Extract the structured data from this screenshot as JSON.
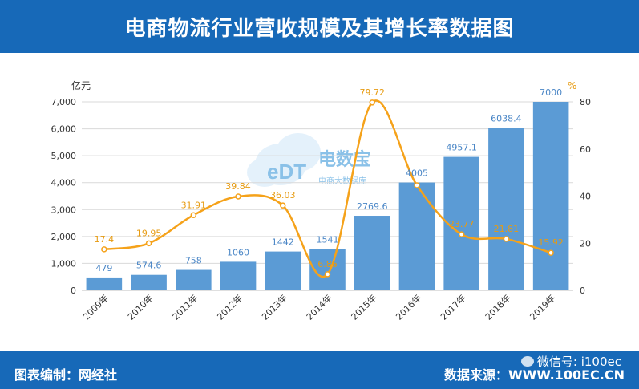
{
  "header": {
    "title": "电商物流行业营收规模及其增长率数据图"
  },
  "footer": {
    "credit": "图表编制：网经社",
    "source": "数据来源：WWW.100EC.CN",
    "wechat": "微信号: i100ec"
  },
  "watermark": {
    "logo_text": "eDT",
    "brand": "电数宝",
    "tagline": "电商大数据库"
  },
  "colors": {
    "header_bg": "#1769b8",
    "bar": "#5b9bd5",
    "line": "#f5a21a"
  },
  "chart_data": {
    "type": "bar",
    "categories": [
      "2009年",
      "2010年",
      "2011年",
      "2012年",
      "2013年",
      "2014年",
      "2015年",
      "2016年",
      "2017年",
      "2018年",
      "2019年"
    ],
    "series": [
      {
        "values": [
          479,
          574.6,
          758,
          1060,
          1442,
          1541,
          2769.6,
          4005,
          4957.1,
          6038.4,
          7000
        ],
        "axis": "left",
        "type": "bar"
      },
      {
        "values": [
          17.4,
          19.95,
          31.91,
          39.84,
          36.03,
          6.86,
          79.72,
          44.6,
          23.77,
          21.81,
          15.92
        ],
        "axis": "right",
        "type": "line"
      }
    ],
    "bar_labels": [
      "479",
      "574.6",
      "758",
      "1060",
      "1442",
      "1541",
      "2769.6",
      "4005",
      "4957.1",
      "6038.4",
      "7000"
    ],
    "line_labels": [
      "17.4",
      "19.95",
      "31.91",
      "39.84",
      "36.03",
      "6.86",
      "79.72",
      "",
      "23.77",
      "21.81",
      "15.92"
    ],
    "yunit_left": "亿元",
    "yunit_right": "%",
    "ylim_left": [
      0,
      7000
    ],
    "ylim_right": [
      0,
      80
    ],
    "yticks_left": [
      "0",
      "1,000",
      "2,000",
      "3,000",
      "4,000",
      "5,000",
      "6,000",
      "7,000"
    ],
    "yticks_right": [
      "0",
      "20",
      "40",
      "60",
      "80"
    ],
    "grid": true
  }
}
